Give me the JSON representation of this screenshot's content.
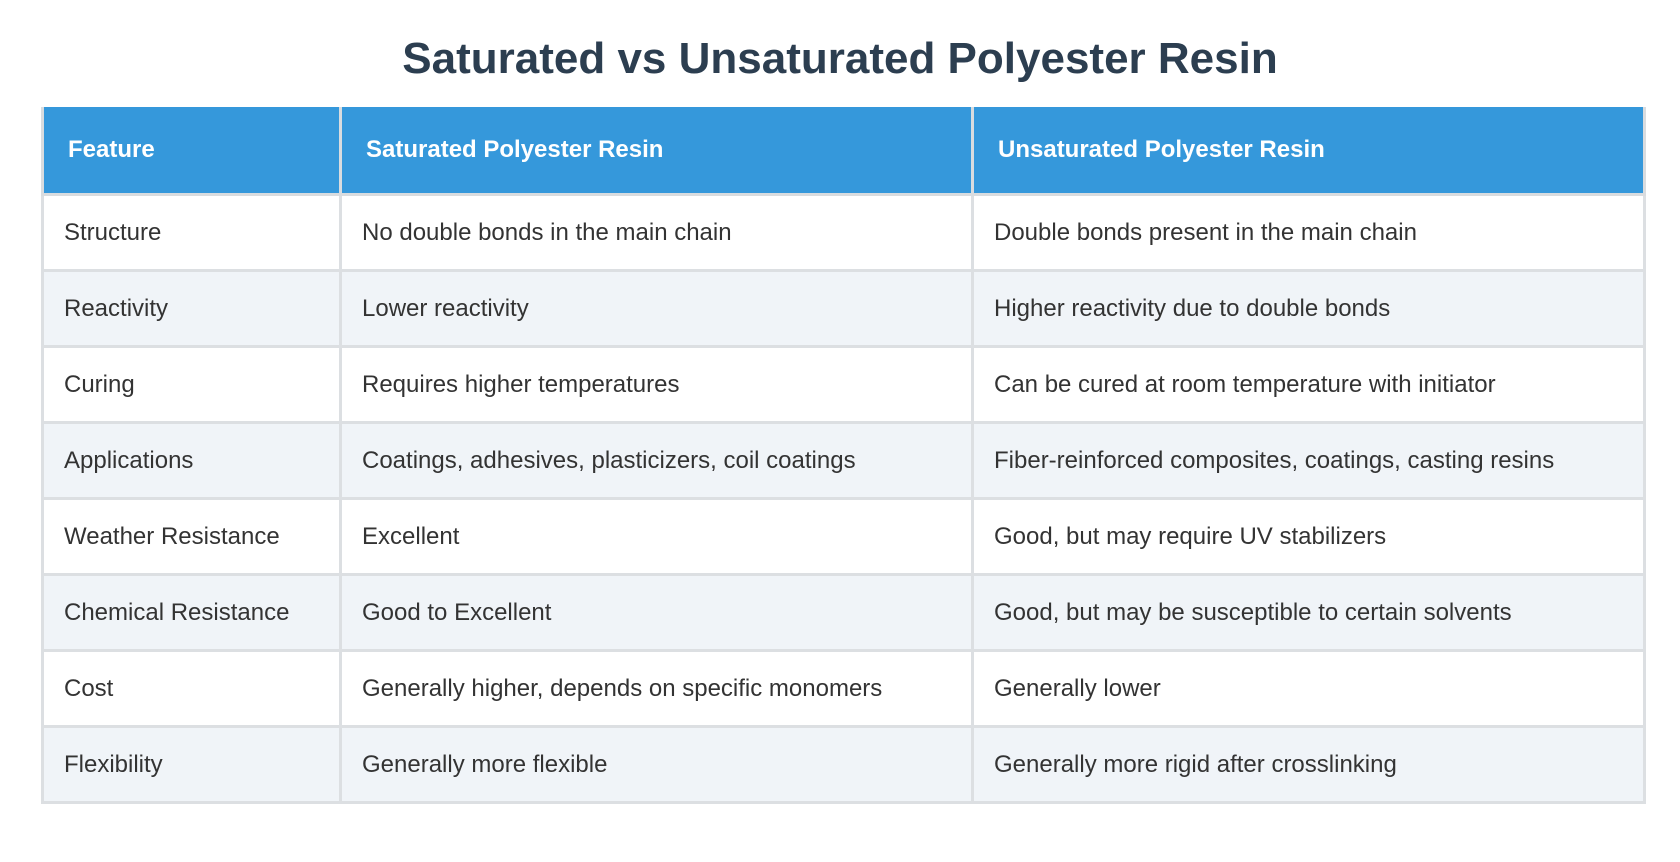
{
  "title": "Saturated vs Unsaturated Polyester Resin",
  "colors": {
    "title": "#2c3e50",
    "header_bg": "#3598db",
    "header_text": "#ffffff",
    "row_alt_bg": "#f0f4f8",
    "border": "#dcdfe2"
  },
  "table": {
    "headers": [
      "Feature",
      "Saturated Polyester Resin",
      "Unsaturated Polyester Resin"
    ],
    "rows": [
      [
        "Structure",
        "No double bonds in the main chain",
        "Double bonds present in the main chain"
      ],
      [
        "Reactivity",
        "Lower reactivity",
        "Higher reactivity due to double bonds"
      ],
      [
        "Curing",
        "Requires higher temperatures",
        "Can be cured at room temperature with initiator"
      ],
      [
        "Applications",
        "Coatings, adhesives, plasticizers, coil coatings",
        "Fiber-reinforced composites, coatings, casting resins"
      ],
      [
        "Weather Resistance",
        "Excellent",
        "Good, but may require UV stabilizers"
      ],
      [
        "Chemical Resistance",
        "Good to Excellent",
        "Good, but may be susceptible to certain solvents"
      ],
      [
        "Cost",
        "Generally higher, depends on specific monomers",
        "Generally lower"
      ],
      [
        "Flexibility",
        "Generally more flexible",
        "Generally more rigid after crosslinking"
      ]
    ]
  }
}
